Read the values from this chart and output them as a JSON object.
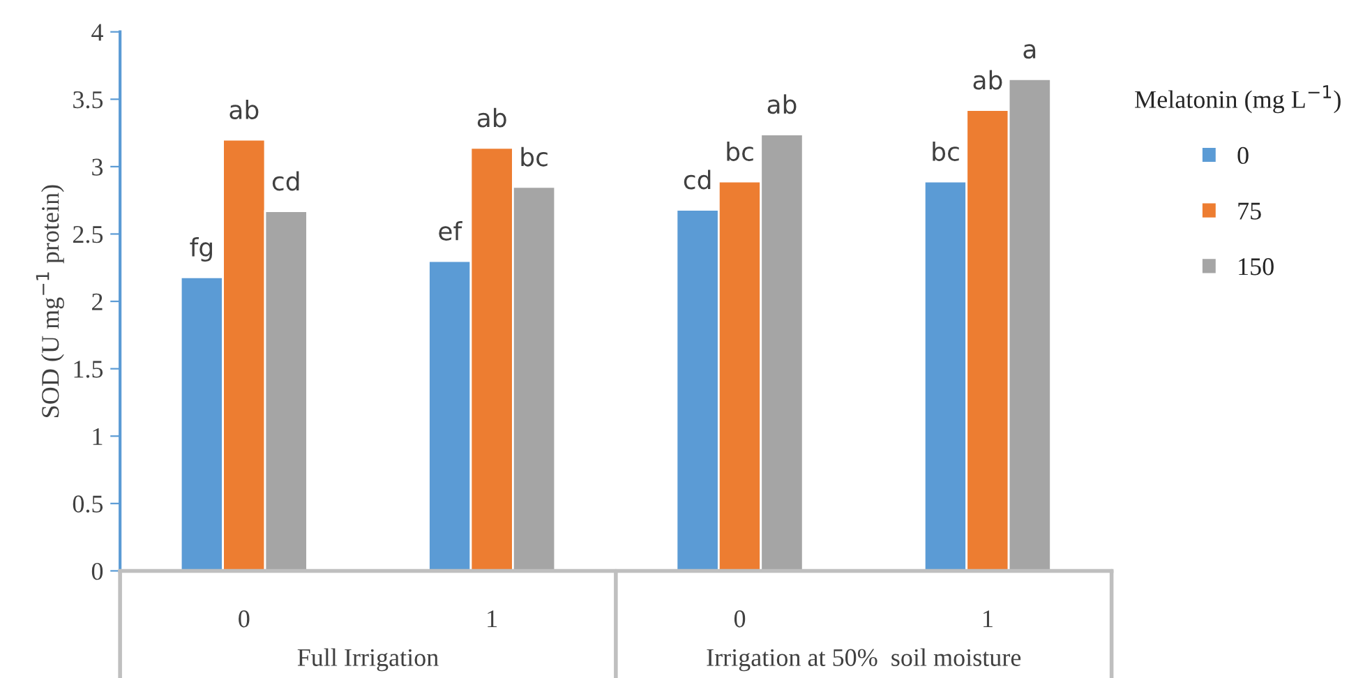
{
  "chart_data": {
    "type": "bar",
    "ylabel": "SOD (U mg$^{−1}$ protein)",
    "legend_title": "Melatonin (mg L$^{−1}$)",
    "categories": [
      "0",
      "1",
      "0",
      "1"
    ],
    "annotations": [
      "Full Irrigation",
      "Irrigation at 50%  soil moisture"
    ],
    "series": [
      {
        "name": "0",
        "color": "#5b9bd5",
        "values": [
          2.18,
          2.3,
          2.68,
          2.89
        ],
        "value_labels": [
          "fg",
          "ef",
          "cd",
          "bc"
        ]
      },
      {
        "name": "75",
        "color": "#ed7d31",
        "values": [
          3.2,
          3.14,
          2.89,
          3.42
        ],
        "value_labels": [
          "ab",
          "ab",
          "bc",
          "ab"
        ]
      },
      {
        "name": "150",
        "color": "#a5a5a5",
        "values": [
          2.67,
          2.85,
          3.24,
          3.65
        ],
        "value_labels": [
          "cd",
          "bc",
          "ab",
          "a"
        ]
      }
    ],
    "ylim": [
      0,
      4
    ],
    "yticks": [
      0,
      0.5,
      1,
      1.5,
      2,
      2.5,
      3,
      3.5,
      4
    ],
    "grid": false,
    "legend": "right"
  }
}
